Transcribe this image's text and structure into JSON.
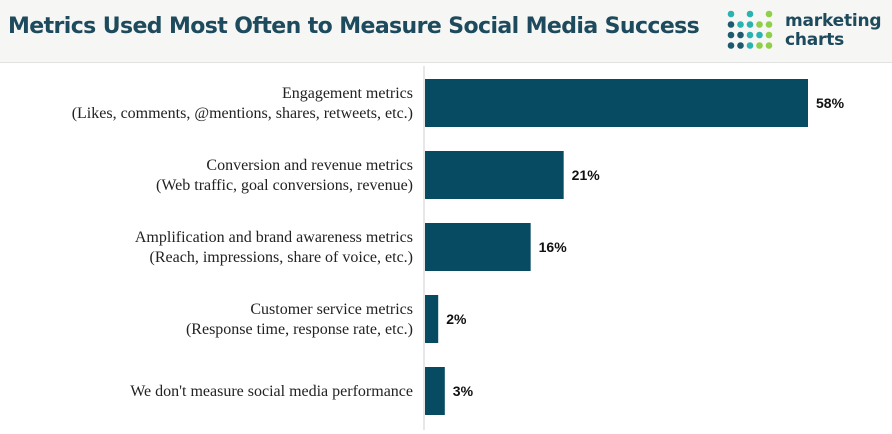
{
  "header": {
    "title": "Metrics Used Most Often to Measure Social Media Success",
    "logo_line1": "marketing",
    "logo_line2": "charts",
    "logo_icon": "dot-grid-logo-icon"
  },
  "colors": {
    "bar": "#064b62",
    "title": "#1d4a5c",
    "logo_dot_dark": "#1d5a6e",
    "logo_dot_teal": "#2bb3b1",
    "logo_dot_green": "#8fcf4a"
  },
  "chart_data": {
    "type": "bar",
    "orientation": "horizontal",
    "title": "Metrics Used Most Often to Measure Social Media Success",
    "categories": [
      [
        "Engagement metrics",
        "(Likes, comments, @mentions, shares, retweets, etc.)"
      ],
      [
        "Conversion and revenue metrics",
        "(Web traffic, goal conversions, revenue)"
      ],
      [
        "Amplification and brand awareness metrics",
        "(Reach, impressions, share of voice, etc.)"
      ],
      [
        "Customer service metrics",
        "(Response time, response rate, etc.)"
      ],
      [
        "We don't measure social media performance"
      ]
    ],
    "values": [
      58,
      21,
      16,
      2,
      3
    ],
    "value_labels": [
      "58%",
      "21%",
      "16%",
      "2%",
      "3%"
    ],
    "unit": "%",
    "xlim": [
      0,
      58
    ],
    "grid": false,
    "legend": false
  }
}
